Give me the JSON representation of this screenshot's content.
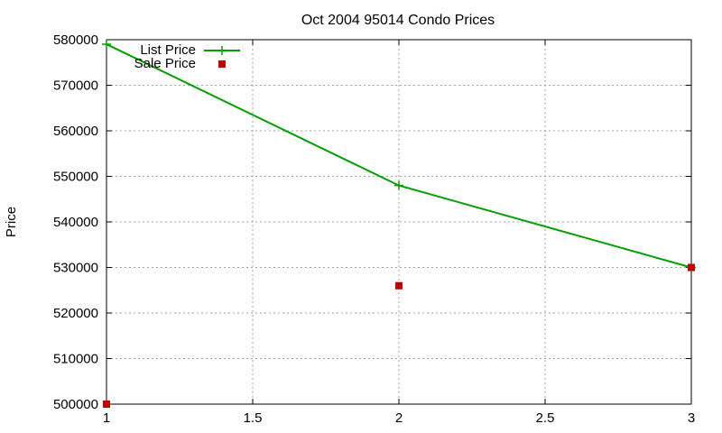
{
  "chart_data": {
    "type": "line",
    "title": "Oct 2004 95014 Condo Prices",
    "xlabel": "",
    "ylabel": "Price",
    "xlim": [
      1,
      3
    ],
    "ylim": [
      500000,
      580000
    ],
    "x_ticks": [
      "1",
      "1.5",
      "2",
      "2.5",
      "3"
    ],
    "y_ticks": [
      "500000",
      "510000",
      "520000",
      "530000",
      "540000",
      "550000",
      "560000",
      "570000",
      "580000"
    ],
    "grid": true,
    "legend_position": "top-left",
    "series": [
      {
        "name": "List Price",
        "style": "line-with-plus-markers",
        "color": "#00a000",
        "x": [
          1,
          2,
          3
        ],
        "y": [
          579000,
          548000,
          530000
        ]
      },
      {
        "name": "Sale Price",
        "style": "square-markers",
        "color": "#c00000",
        "x": [
          1,
          2,
          3
        ],
        "y": [
          500000,
          526000,
          530000
        ]
      }
    ]
  }
}
